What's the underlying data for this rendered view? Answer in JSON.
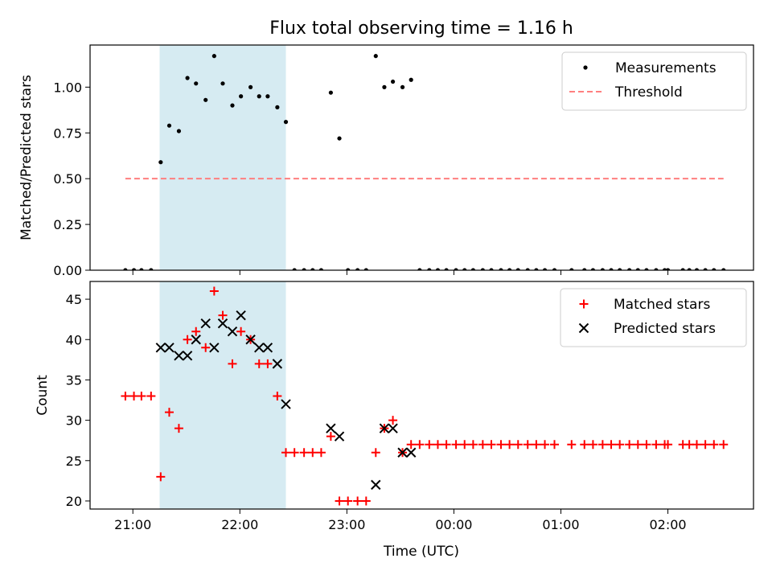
{
  "chart_data": {
    "title": "Flux total observing time = 1.16 h",
    "xlabel": "Time (UTC)",
    "x_unit": "hours UTC (past midnight continues as 24+)",
    "xlim": [
      20.6,
      26.8
    ],
    "x_ticks": [
      {
        "x": 21,
        "label": "21:00"
      },
      {
        "x": 22,
        "label": "22:00"
      },
      {
        "x": 23,
        "label": "23:00"
      },
      {
        "x": 24,
        "label": "00:00"
      },
      {
        "x": 25,
        "label": "01:00"
      },
      {
        "x": 26,
        "label": "02:00"
      }
    ],
    "highlight_span": {
      "x_start": 21.25,
      "x_end": 22.43,
      "color": "#add8e6",
      "opacity": 0.5
    },
    "panels": [
      {
        "type": "scatter",
        "ylabel": "Matched/Predicted stars",
        "ylim": [
          0,
          1.23
        ],
        "y_ticks": [
          {
            "y": 0,
            "label": "0.00"
          },
          {
            "y": 0.25,
            "label": "0.25"
          },
          {
            "y": 0.5,
            "label": "0.50"
          },
          {
            "y": 0.75,
            "label": "0.75"
          },
          {
            "y": 1.0,
            "label": "1.00"
          }
        ],
        "legend_position": "upper right",
        "series": [
          {
            "name": "Measurements",
            "marker": "dot",
            "color": "#000000",
            "points": [
              [
                20.93,
                0
              ],
              [
                21.01,
                0
              ],
              [
                21.08,
                0
              ],
              [
                21.17,
                0
              ],
              [
                21.26,
                0.59
              ],
              [
                21.34,
                0.79
              ],
              [
                21.43,
                0.76
              ],
              [
                21.51,
                1.05
              ],
              [
                21.59,
                1.02
              ],
              [
                21.68,
                0.93
              ],
              [
                21.76,
                1.17
              ],
              [
                21.84,
                1.02
              ],
              [
                21.93,
                0.9
              ],
              [
                22.01,
                0.95
              ],
              [
                22.1,
                1.0
              ],
              [
                22.18,
                0.95
              ],
              [
                22.26,
                0.95
              ],
              [
                22.35,
                0.89
              ],
              [
                22.43,
                0.81
              ],
              [
                22.51,
                0
              ],
              [
                22.6,
                0
              ],
              [
                22.68,
                0
              ],
              [
                22.76,
                0
              ],
              [
                22.85,
                0.97
              ],
              [
                22.93,
                0.72
              ],
              [
                23.01,
                0
              ],
              [
                23.1,
                0
              ],
              [
                23.18,
                0
              ],
              [
                23.27,
                1.17
              ],
              [
                23.35,
                1.0
              ],
              [
                23.43,
                1.03
              ],
              [
                23.52,
                1.0
              ],
              [
                23.6,
                1.04
              ],
              [
                23.68,
                0
              ],
              [
                23.77,
                0
              ],
              [
                23.85,
                0
              ],
              [
                23.93,
                0
              ],
              [
                24.02,
                0
              ],
              [
                24.1,
                0
              ],
              [
                24.18,
                0
              ],
              [
                24.27,
                0
              ],
              [
                24.35,
                0
              ],
              [
                24.44,
                0
              ],
              [
                24.52,
                0
              ],
              [
                24.6,
                0
              ],
              [
                24.69,
                0
              ],
              [
                24.77,
                0
              ],
              [
                24.85,
                0
              ],
              [
                24.94,
                0
              ],
              [
                25.1,
                0
              ],
              [
                25.22,
                0
              ],
              [
                25.3,
                0
              ],
              [
                25.39,
                0
              ],
              [
                25.47,
                0
              ],
              [
                25.55,
                0
              ],
              [
                25.64,
                0
              ],
              [
                25.72,
                0
              ],
              [
                25.8,
                0
              ],
              [
                25.89,
                0
              ],
              [
                25.97,
                0
              ],
              [
                26.0,
                0
              ],
              [
                26.14,
                0
              ],
              [
                26.2,
                0
              ],
              [
                26.27,
                0
              ],
              [
                26.35,
                0
              ],
              [
                26.43,
                0
              ],
              [
                26.52,
                0
              ]
            ]
          },
          {
            "name": "Threshold",
            "marker": "dashed-line",
            "color": "#ff7f7f",
            "points": [
              [
                20.93,
                0.5
              ],
              [
                26.52,
                0.5
              ]
            ]
          }
        ]
      },
      {
        "type": "scatter",
        "ylabel": "Count",
        "ylim": [
          19,
          47.2
        ],
        "y_ticks": [
          {
            "y": 20,
            "label": "20"
          },
          {
            "y": 25,
            "label": "25"
          },
          {
            "y": 30,
            "label": "30"
          },
          {
            "y": 35,
            "label": "35"
          },
          {
            "y": 40,
            "label": "40"
          },
          {
            "y": 45,
            "label": "45"
          }
        ],
        "legend_position": "upper right",
        "series": [
          {
            "name": "Matched stars",
            "marker": "plus",
            "color": "#ff0000",
            "points": [
              [
                20.93,
                33
              ],
              [
                21.01,
                33
              ],
              [
                21.08,
                33
              ],
              [
                21.17,
                33
              ],
              [
                21.26,
                23
              ],
              [
                21.34,
                31
              ],
              [
                21.43,
                29
              ],
              [
                21.51,
                40
              ],
              [
                21.59,
                41
              ],
              [
                21.68,
                39
              ],
              [
                21.76,
                46
              ],
              [
                21.84,
                43
              ],
              [
                21.93,
                37
              ],
              [
                22.01,
                41
              ],
              [
                22.1,
                40
              ],
              [
                22.18,
                37
              ],
              [
                22.26,
                37
              ],
              [
                22.35,
                33
              ],
              [
                22.43,
                26
              ],
              [
                22.51,
                26
              ],
              [
                22.6,
                26
              ],
              [
                22.68,
                26
              ],
              [
                22.76,
                26
              ],
              [
                22.85,
                28
              ],
              [
                22.93,
                20
              ],
              [
                23.01,
                20
              ],
              [
                23.1,
                20
              ],
              [
                23.18,
                20
              ],
              [
                23.27,
                26
              ],
              [
                23.35,
                29
              ],
              [
                23.43,
                30
              ],
              [
                23.52,
                26
              ],
              [
                23.6,
                27
              ],
              [
                23.68,
                27
              ],
              [
                23.77,
                27
              ],
              [
                23.85,
                27
              ],
              [
                23.93,
                27
              ],
              [
                24.02,
                27
              ],
              [
                24.1,
                27
              ],
              [
                24.18,
                27
              ],
              [
                24.27,
                27
              ],
              [
                24.35,
                27
              ],
              [
                24.44,
                27
              ],
              [
                24.52,
                27
              ],
              [
                24.6,
                27
              ],
              [
                24.69,
                27
              ],
              [
                24.77,
                27
              ],
              [
                24.85,
                27
              ],
              [
                24.94,
                27
              ],
              [
                25.1,
                27
              ],
              [
                25.22,
                27
              ],
              [
                25.3,
                27
              ],
              [
                25.39,
                27
              ],
              [
                25.47,
                27
              ],
              [
                25.55,
                27
              ],
              [
                25.64,
                27
              ],
              [
                25.72,
                27
              ],
              [
                25.8,
                27
              ],
              [
                25.89,
                27
              ],
              [
                25.97,
                27
              ],
              [
                26.0,
                27
              ],
              [
                26.14,
                27
              ],
              [
                26.2,
                27
              ],
              [
                26.27,
                27
              ],
              [
                26.35,
                27
              ],
              [
                26.43,
                27
              ],
              [
                26.52,
                27
              ]
            ]
          },
          {
            "name": "Predicted stars",
            "marker": "x",
            "color": "#000000",
            "points": [
              [
                21.26,
                39
              ],
              [
                21.34,
                39
              ],
              [
                21.43,
                38
              ],
              [
                21.51,
                38
              ],
              [
                21.59,
                40
              ],
              [
                21.68,
                42
              ],
              [
                21.76,
                39
              ],
              [
                21.84,
                42
              ],
              [
                21.93,
                41
              ],
              [
                22.01,
                43
              ],
              [
                22.1,
                40
              ],
              [
                22.18,
                39
              ],
              [
                22.26,
                39
              ],
              [
                22.35,
                37
              ],
              [
                22.43,
                32
              ],
              [
                22.85,
                29
              ],
              [
                22.93,
                28
              ],
              [
                23.27,
                22
              ],
              [
                23.35,
                29
              ],
              [
                23.43,
                29
              ],
              [
                23.52,
                26
              ],
              [
                23.6,
                26
              ]
            ]
          }
        ]
      }
    ]
  }
}
